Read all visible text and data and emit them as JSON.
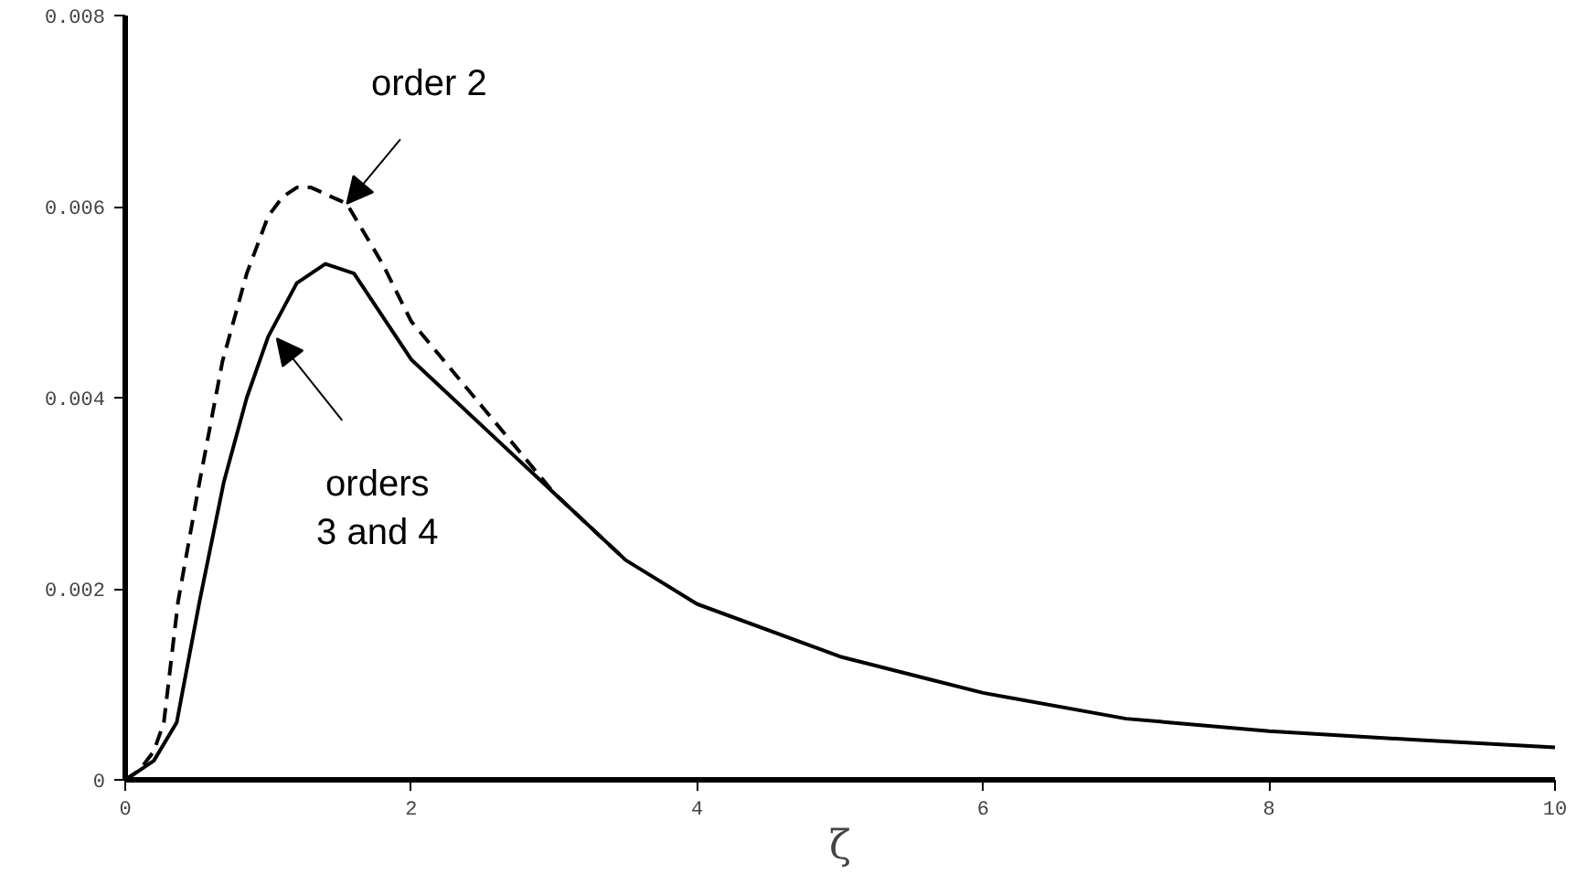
{
  "chart_data": {
    "type": "line",
    "xlabel": "ζ",
    "xlim": [
      0,
      10
    ],
    "ylim": [
      0,
      0.008
    ],
    "xticks": [
      0,
      2,
      4,
      6,
      8,
      10
    ],
    "yticks": [
      0,
      0.002,
      0.004,
      0.006,
      0.008
    ],
    "grid": false,
    "marker": "none",
    "series": [
      {
        "color": "#000000",
        "line_style": "dashed",
        "x": [
          0,
          0.1,
          0.2,
          0.27,
          0.37,
          0.52,
          0.68,
          0.85,
          1.0,
          1.1,
          1.2,
          1.3,
          1.55,
          1.8,
          2.0,
          2.5,
          3.0,
          3.5
        ],
        "values": [
          0,
          0.0001,
          0.0003,
          0.0006,
          0.00187,
          0.00312,
          0.00438,
          0.0053,
          0.0059,
          0.0061,
          0.0062,
          0.0062,
          0.00603,
          0.0054,
          0.0048,
          0.0039,
          0.003,
          0.0023
        ]
      },
      {
        "color": "#000000",
        "line_style": "solid",
        "x": [
          0,
          0.1,
          0.2,
          0.36,
          0.52,
          0.69,
          0.85,
          1.0,
          1.2,
          1.4,
          1.6,
          2.0,
          2.5,
          3.0,
          3.5,
          4.0,
          5.0,
          6.0,
          7.0,
          8.0,
          9.0,
          10.0
        ],
        "values": [
          0,
          0.0001,
          0.0002,
          0.0006,
          0.00187,
          0.00312,
          0.004,
          0.00464,
          0.0052,
          0.0054,
          0.0053,
          0.0044,
          0.0037,
          0.003,
          0.0023,
          0.00184,
          0.00129,
          0.00091,
          0.00064,
          0.00051,
          0.00042,
          0.00034
        ]
      }
    ],
    "annotations": [
      {
        "text": "order 2",
        "x": 1.55,
        "y": 0.00603
      },
      {
        "text": "orders\n3 and 4",
        "x": 1.06,
        "y": 0.00462
      }
    ]
  }
}
